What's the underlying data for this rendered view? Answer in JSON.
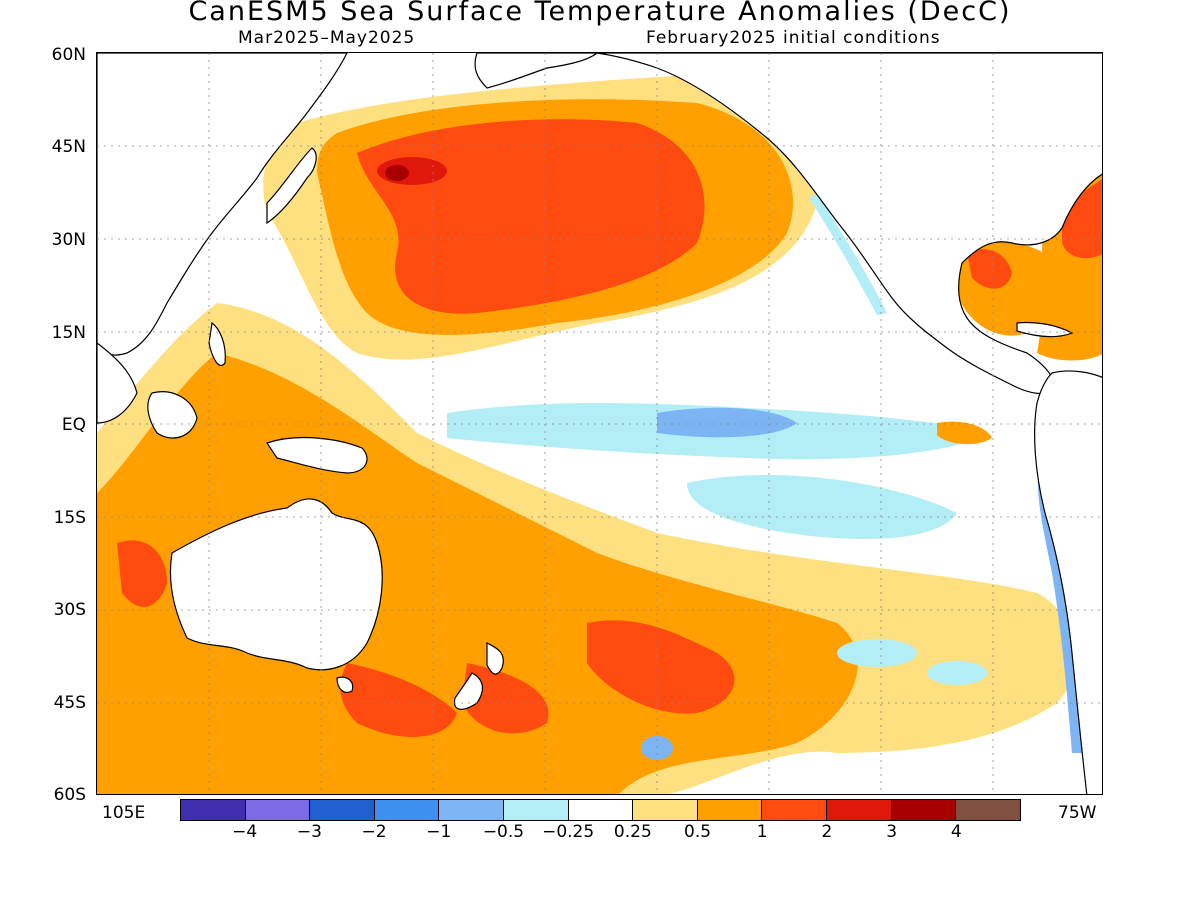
{
  "title": "CanESM5 Sea Surface Temperature Anomalies (DecC)",
  "subtitle_left": "Mar2025–May2025",
  "subtitle_right": "February2025 initial conditions",
  "lat_labels": [
    "60N",
    "45N",
    "30N",
    "15N",
    "EQ",
    "15S",
    "30S",
    "45S",
    "60S"
  ],
  "lon_labels": {
    "west": "105E",
    "east": "75W"
  },
  "colorbar": {
    "colors": [
      "#3f2faf",
      "#7c6ae6",
      "#1f5fcf",
      "#3d8ff0",
      "#7db4f4",
      "#b3eef6",
      "#ffffff",
      "#ffe080",
      "#ffa000",
      "#ff4a10",
      "#e0180c",
      "#a80000",
      "#805040"
    ],
    "labels": [
      "−4",
      "−3",
      "−2",
      "−1",
      "−0.5",
      "−0.25",
      "0.25",
      "0.5",
      "1",
      "2",
      "3",
      "4"
    ]
  }
}
